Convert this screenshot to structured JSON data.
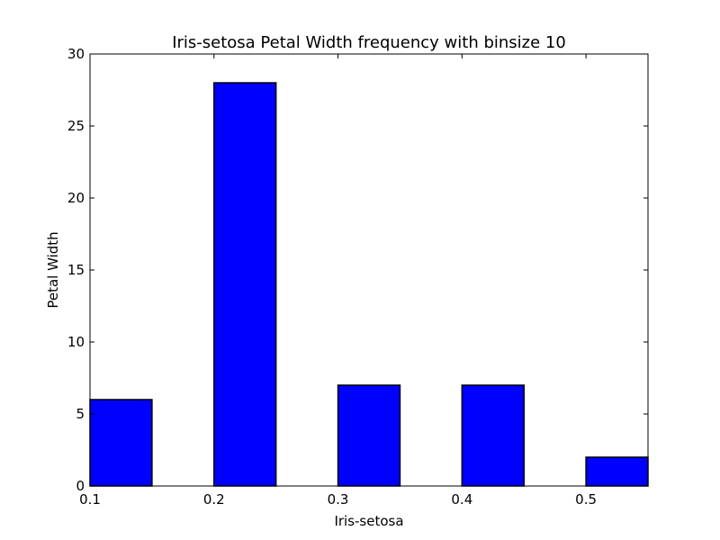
{
  "chart_data": {
    "type": "bar",
    "title": "Iris-setosa Petal Width frequency with binsize 10",
    "xlabel": "Iris-setosa",
    "ylabel": "Petal Width",
    "bins": [
      {
        "start": 0.1,
        "end": 0.15,
        "value": 6
      },
      {
        "start": 0.2,
        "end": 0.25,
        "value": 28
      },
      {
        "start": 0.3,
        "end": 0.35,
        "value": 7
      },
      {
        "start": 0.4,
        "end": 0.45,
        "value": 7
      },
      {
        "start": 0.5,
        "end": 0.55,
        "value": 2
      }
    ],
    "xlim": [
      0.1,
      0.55
    ],
    "ylim": [
      0,
      30
    ],
    "xticks": [
      {
        "value": 0.1,
        "label": "0.1"
      },
      {
        "value": 0.2,
        "label": "0.2"
      },
      {
        "value": 0.3,
        "label": "0.3"
      },
      {
        "value": 0.4,
        "label": "0.4"
      },
      {
        "value": 0.5,
        "label": "0.5"
      }
    ],
    "yticks": [
      {
        "value": 0,
        "label": "0"
      },
      {
        "value": 5,
        "label": "5"
      },
      {
        "value": 10,
        "label": "10"
      },
      {
        "value": 15,
        "label": "15"
      },
      {
        "value": 20,
        "label": "20"
      },
      {
        "value": 25,
        "label": "25"
      },
      {
        "value": 30,
        "label": "30"
      }
    ],
    "bar_color": "#0000ff",
    "edge_color": "#000000",
    "grid": false
  }
}
